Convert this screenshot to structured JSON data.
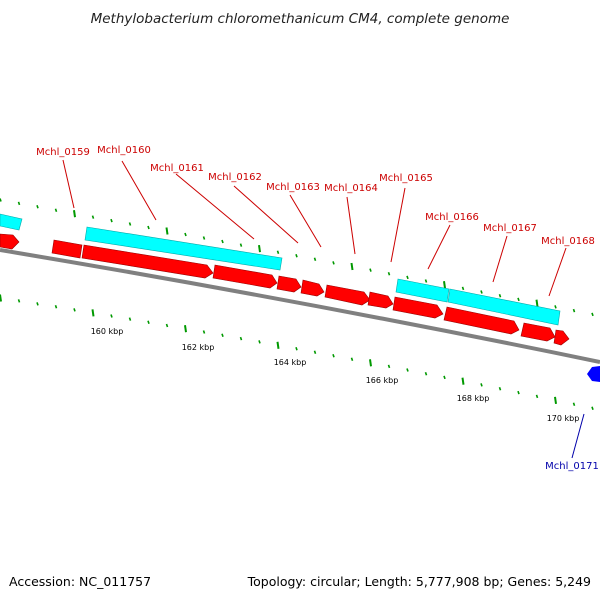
{
  "title": "Methylobacterium chloromethanicum CM4, complete genome",
  "footer": {
    "accession": "Accession: NC_011757",
    "topology": "Topology: circular; Length: 5,777,908 bp; Genes: 5,249"
  },
  "colors": {
    "forward_gene": "#ff0000",
    "cds_feature": "#00ffff",
    "reverse_gene": "#0000ff",
    "label_forward": "#cc0000",
    "label_reverse": "#0000aa",
    "backbone": "#808080",
    "tick": "#009900"
  },
  "gene_labels": [
    {
      "name": "Mchl_0159",
      "strand": "forward"
    },
    {
      "name": "Mchl_0160",
      "strand": "forward"
    },
    {
      "name": "Mchl_0161",
      "strand": "forward"
    },
    {
      "name": "Mchl_0162",
      "strand": "forward"
    },
    {
      "name": "Mchl_0163",
      "strand": "forward"
    },
    {
      "name": "Mchl_0164",
      "strand": "forward"
    },
    {
      "name": "Mchl_0165",
      "strand": "forward"
    },
    {
      "name": "Mchl_0166",
      "strand": "forward"
    },
    {
      "name": "Mchl_0167",
      "strand": "forward"
    },
    {
      "name": "Mchl_0168",
      "strand": "forward"
    },
    {
      "name": "Mchl_0171",
      "strand": "reverse"
    }
  ],
  "scale_labels": [
    "160 kbp",
    "162 kbp",
    "164 kbp",
    "166 kbp",
    "168 kbp",
    "170 kbp"
  ]
}
